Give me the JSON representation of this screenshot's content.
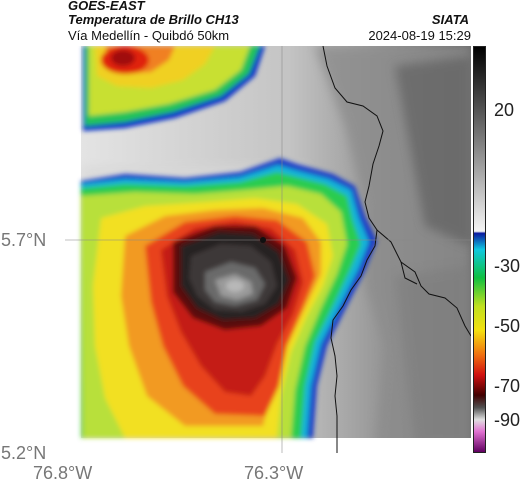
{
  "header": {
    "satellite": "GOES-EAST",
    "product": "Temperatura de Brillo CH13",
    "route": "Vía Medellín - Quibdó 50km",
    "source": "SIATA",
    "datetime": "2024-08-19 15:29"
  },
  "map": {
    "x_ticks": [
      "76.8°W",
      "76.3°W"
    ],
    "y_ticks": [
      "5.7°N",
      "5.2°N"
    ]
  },
  "colorbar": {
    "ticks": [
      "20",
      "-30",
      "-50",
      "-70",
      "-90"
    ]
  }
}
